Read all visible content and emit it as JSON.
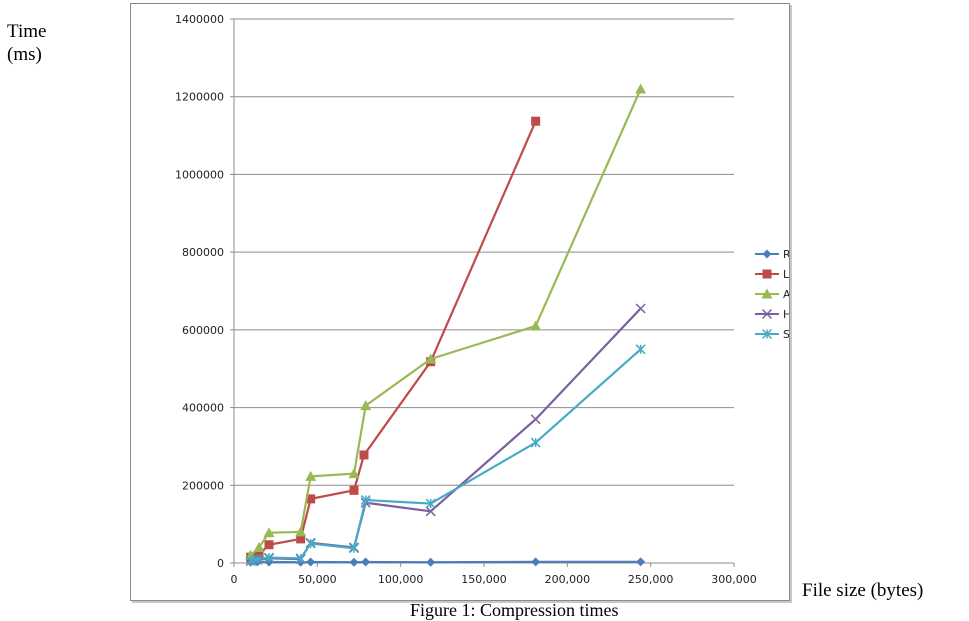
{
  "figure": {
    "ylabel_line1": "Time",
    "ylabel_line2": "(ms)",
    "xlabel": "File size (bytes)",
    "caption": "Figure 1: Compression times"
  },
  "chart_data": {
    "type": "line",
    "title": "",
    "xlabel": "File size (bytes)",
    "ylabel": "Time (ms)",
    "xlim": [
      0,
      300000
    ],
    "ylim": [
      0,
      1400000
    ],
    "x_ticks": [
      "0",
      "50,000",
      "100,000",
      "150,000",
      "200,000",
      "250,000",
      "300,000"
    ],
    "y_ticks": [
      "0",
      "200000",
      "400000",
      "600000",
      "800000",
      "1000000",
      "1200000",
      "1400000"
    ],
    "x_tick_values": [
      0,
      50000,
      100000,
      150000,
      200000,
      250000,
      300000
    ],
    "y_tick_values": [
      0,
      200000,
      400000,
      600000,
      800000,
      1000000,
      1200000,
      1400000
    ],
    "grid": "horizontal",
    "legend_position": "right",
    "series": [
      {
        "name": "RLE",
        "color": "#4a7ebb",
        "marker": "diamond",
        "points": [
          [
            10000,
            2000
          ],
          [
            14000,
            3000
          ],
          [
            21000,
            2500
          ],
          [
            40000,
            2000
          ],
          [
            46000,
            2500
          ],
          [
            72000,
            2000
          ],
          [
            79000,
            2500
          ],
          [
            118000,
            2000
          ],
          [
            181000,
            3000
          ],
          [
            244000,
            3000
          ]
        ]
      },
      {
        "name": "LZW",
        "color": "#be4b48",
        "marker": "square",
        "points": [
          [
            10000,
            15000
          ],
          [
            15000,
            22000
          ],
          [
            21000,
            47000
          ],
          [
            40000,
            62000
          ],
          [
            46000,
            165000
          ],
          [
            72000,
            187000
          ],
          [
            78000,
            278000
          ],
          [
            118000,
            518000
          ],
          [
            181000,
            1137000
          ]
        ]
      },
      {
        "name": "Adaptive Huffman",
        "color": "#98b954",
        "marker": "triangle",
        "points": [
          [
            10000,
            20000
          ],
          [
            15000,
            40000
          ],
          [
            21000,
            78000
          ],
          [
            40000,
            80000
          ],
          [
            46000,
            223000
          ],
          [
            72000,
            230000
          ],
          [
            79000,
            405000
          ],
          [
            118000,
            525000
          ],
          [
            181000,
            610000
          ],
          [
            244000,
            1220000
          ]
        ]
      },
      {
        "name": "Huffman",
        "color": "#7d60a0",
        "marker": "x",
        "points": [
          [
            10000,
            5000
          ],
          [
            14000,
            8000
          ],
          [
            21000,
            12000
          ],
          [
            40000,
            10000
          ],
          [
            46000,
            52000
          ],
          [
            72000,
            40000
          ],
          [
            79000,
            155000
          ],
          [
            118000,
            133000
          ],
          [
            181000,
            370000
          ],
          [
            244000,
            655000
          ]
        ]
      },
      {
        "name": "Shanon Fano",
        "color": "#46aac5",
        "marker": "star",
        "points": [
          [
            10000,
            6000
          ],
          [
            14000,
            10000
          ],
          [
            21000,
            14000
          ],
          [
            40000,
            12000
          ],
          [
            46000,
            50000
          ],
          [
            72000,
            38000
          ],
          [
            79000,
            162000
          ],
          [
            118000,
            153000
          ],
          [
            181000,
            310000
          ],
          [
            244000,
            550000
          ]
        ]
      }
    ]
  }
}
